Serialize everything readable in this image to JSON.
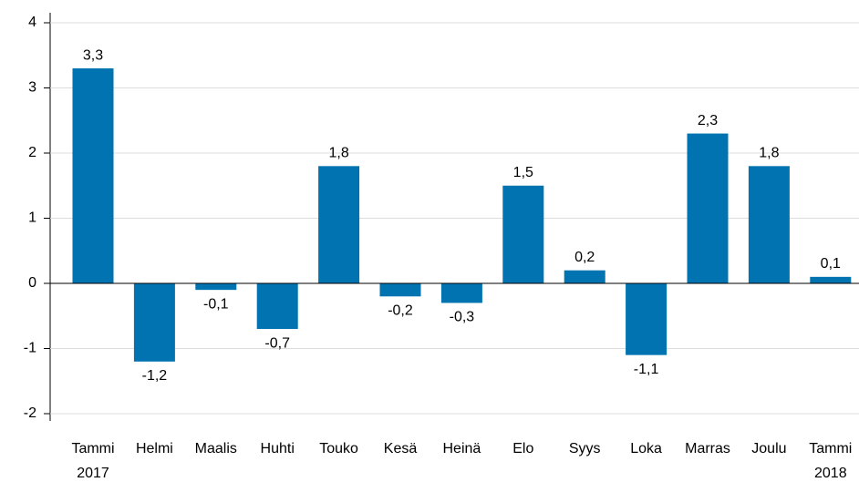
{
  "chart_data": {
    "type": "bar",
    "categories": [
      "Tammi 2017",
      "Helmi",
      "Maalis",
      "Huhti",
      "Touko",
      "Kesä",
      "Heinä",
      "Elo",
      "Syys",
      "Loka",
      "Marras",
      "Joulu",
      "Tammi 2018"
    ],
    "values": [
      3.3,
      -1.2,
      -0.1,
      -0.7,
      1.8,
      -0.2,
      -0.3,
      1.5,
      0.2,
      -1.1,
      2.3,
      1.8,
      0.1
    ],
    "value_labels": [
      "3,3",
      "-1,2",
      "-0,1",
      "-0,7",
      "1,8",
      "-0,2",
      "-0,3",
      "1,5",
      "0,2",
      "-1,1",
      "2,3",
      "1,8",
      "0,1"
    ],
    "color": "#0073b0",
    "ylim": [
      -2,
      4
    ],
    "yticks": [
      -2,
      -1,
      0,
      1,
      2,
      3,
      4
    ],
    "grid": true
  }
}
